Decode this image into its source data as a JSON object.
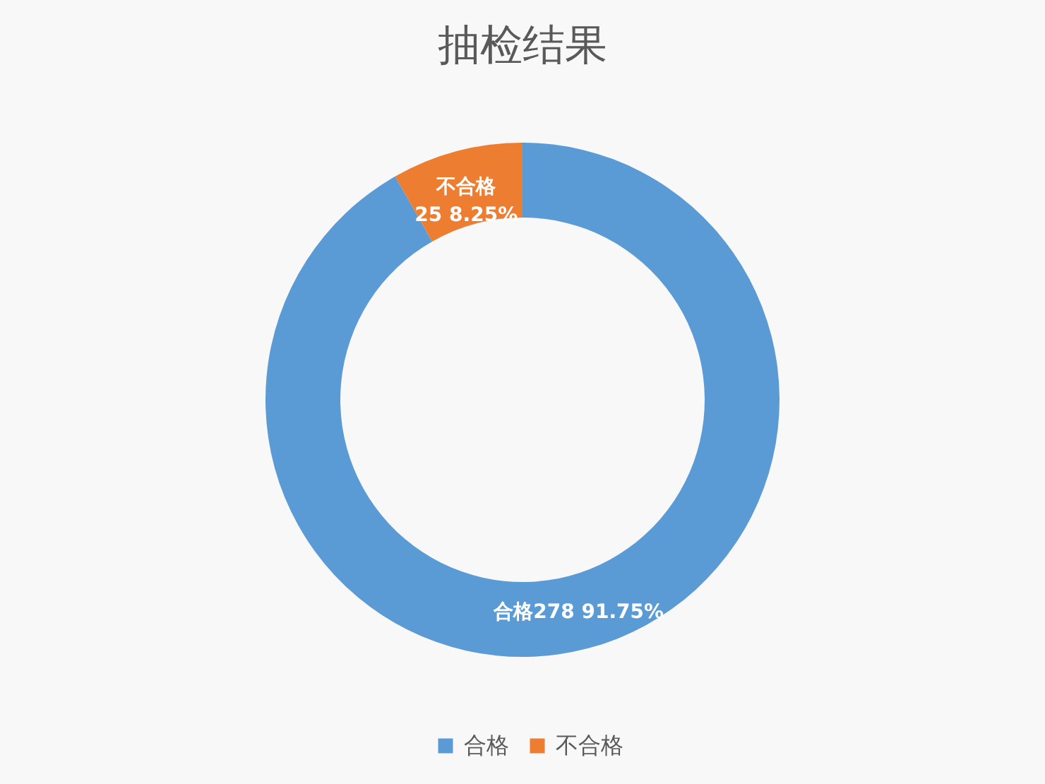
{
  "chart_data": {
    "type": "donut",
    "title": "抽检结果",
    "categories": [
      "合格",
      "不合格"
    ],
    "values": [
      278,
      25
    ],
    "colors": [
      "#5b9bd5",
      "#ed7d31"
    ],
    "value_labels": [
      "合格278  91.75%",
      "不合格\n25  8.25%"
    ],
    "legend": "bottom"
  }
}
